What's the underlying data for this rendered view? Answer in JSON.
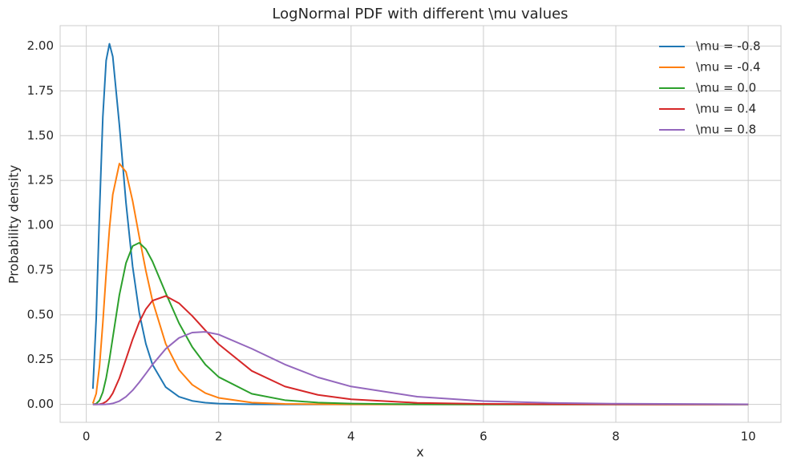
{
  "chart_data": {
    "type": "line",
    "title": "LogNormal PDF with different \\mu values",
    "xlabel": "x",
    "ylabel": "Probability density",
    "x": [
      0.1,
      0.15,
      0.2,
      0.25,
      0.3,
      0.35,
      0.4,
      0.5,
      0.6,
      0.7,
      0.8,
      0.9,
      1.0,
      1.2,
      1.4,
      1.6,
      1.8,
      2.0,
      2.5,
      3,
      3.5,
      4,
      5,
      6,
      7,
      8,
      10
    ],
    "series": [
      {
        "name": "\\mu = -0.8",
        "color": "#1f77b4",
        "values": [
          0.087,
          0.479,
          1.077,
          1.605,
          1.919,
          2.013,
          1.942,
          1.56,
          1.125,
          0.77,
          0.512,
          0.338,
          0.222,
          0.0965,
          0.043,
          0.0198,
          0.0094,
          0.0046,
          0.0009,
          0.0002,
          0.0001,
          0,
          0,
          0,
          0,
          0,
          0
        ]
      },
      {
        "name": "\\mu = -0.4",
        "color": "#ff7f0e",
        "values": [
          0.0057,
          0.0601,
          0.214,
          0.456,
          0.73,
          0.98,
          1.171,
          1.344,
          1.298,
          1.136,
          0.936,
          0.746,
          0.579,
          0.338,
          0.193,
          0.11,
          0.063,
          0.0366,
          0.01,
          0.003,
          0.001,
          0.0003,
          0,
          0,
          0,
          0,
          0
        ]
      },
      {
        "name": "\\mu = 0.0",
        "color": "#2ca02c",
        "values": [
          0.0002,
          0.004,
          0.0225,
          0.0684,
          0.1466,
          0.2517,
          0.372,
          0.611,
          0.789,
          0.884,
          0.902,
          0.867,
          0.798,
          0.622,
          0.454,
          0.321,
          0.222,
          0.153,
          0.0595,
          0.0238,
          0.0099,
          0.0043,
          0.0009,
          0.0002,
          0,
          0,
          0
        ]
      },
      {
        "name": "\\mu = 0.4",
        "color": "#d62728",
        "values": [
          0,
          0.0001,
          0.0012,
          0.0054,
          0.0155,
          0.0341,
          0.0625,
          0.146,
          0.253,
          0.363,
          0.459,
          0.532,
          0.579,
          0.605,
          0.565,
          0.494,
          0.413,
          0.336,
          0.187,
          0.1,
          0.0532,
          0.0285,
          0.0086,
          0.0028,
          0.001,
          0.0004,
          0.0001
        ]
      },
      {
        "name": "\\mu = 0.8",
        "color": "#9467bd",
        "values": [
          0,
          0,
          0,
          0.0002,
          0.0009,
          0.0024,
          0.0055,
          0.0185,
          0.0428,
          0.0785,
          0.123,
          0.172,
          0.222,
          0.31,
          0.371,
          0.401,
          0.405,
          0.39,
          0.311,
          0.223,
          0.151,
          0.1,
          0.0431,
          0.0186,
          0.0083,
          0.0038,
          0.0009
        ]
      }
    ],
    "xlim": [
      -0.395,
      10.495
    ],
    "ylim": [
      -0.1,
      2.114
    ],
    "xticks": [
      0,
      2,
      4,
      6,
      8,
      10
    ],
    "yticks": [
      {
        "value": 0,
        "label": "0.00"
      },
      {
        "value": 0.25,
        "label": "0.25"
      },
      {
        "value": 0.5,
        "label": "0.50"
      },
      {
        "value": 0.75,
        "label": "0.75"
      },
      {
        "value": 1,
        "label": "1.00"
      },
      {
        "value": 1.25,
        "label": "1.25"
      },
      {
        "value": 1.5,
        "label": "1.50"
      },
      {
        "value": 1.75,
        "label": "1.75"
      },
      {
        "value": 2,
        "label": "2.00"
      }
    ],
    "grid": true,
    "legend": "upper right"
  }
}
